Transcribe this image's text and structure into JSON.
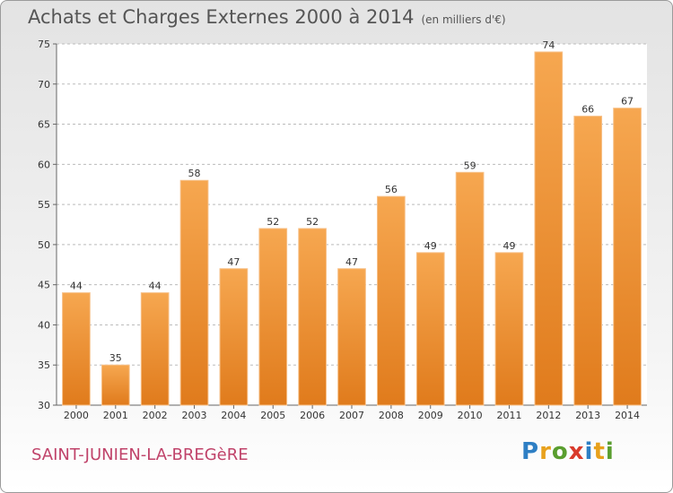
{
  "chart_data": {
    "type": "bar",
    "title": "Achats et Charges Externes 2000 à 2014",
    "subtitle": "(en milliers d'€)",
    "categories": [
      "2000",
      "2001",
      "2002",
      "2003",
      "2004",
      "2005",
      "2006",
      "2007",
      "2008",
      "2009",
      "2010",
      "2011",
      "2012",
      "2013",
      "2014"
    ],
    "values": [
      44,
      35,
      44,
      58,
      47,
      52,
      52,
      47,
      56,
      49,
      59,
      49,
      74,
      66,
      67
    ],
    "ylim": [
      30,
      75
    ],
    "yticks": [
      30,
      35,
      40,
      45,
      50,
      55,
      60,
      65,
      70,
      75
    ],
    "grid": true,
    "colors": {
      "bar_top": "#f6a750",
      "bar_bottom": "#e07b1c",
      "grid": "#bbbbbb"
    }
  },
  "footer": {
    "commune": "SAINT-JUNIEN-LA-BREGèRE",
    "brand_letters": [
      "P",
      "r",
      "o",
      "x",
      "i",
      "t",
      "i"
    ],
    "brand_colors": [
      "#2e7fc4",
      "#e8a11c",
      "#5a9e2f",
      "#d93a2b",
      "#2e7fc4",
      "#e8a11c",
      "#5a9e2f"
    ]
  }
}
